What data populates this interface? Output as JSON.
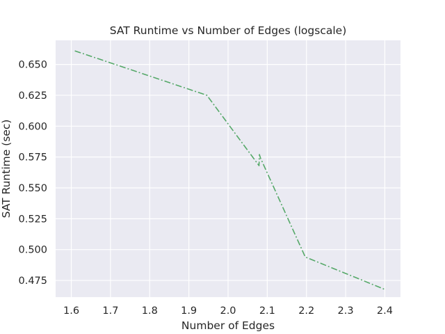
{
  "chart_data": {
    "type": "line",
    "title": "SAT Runtime vs Number of Edges (logscale)",
    "xlabel": "Number of Edges",
    "ylabel": "SAT Runtime (sec)",
    "xlim": [
      1.56,
      2.44
    ],
    "ylim": [
      0.4615,
      0.6695
    ],
    "x_ticks": [
      1.6,
      1.7,
      1.8,
      1.9,
      2.0,
      2.1,
      2.2,
      2.3,
      2.4
    ],
    "x_tick_labels": [
      "1.6",
      "1.7",
      "1.8",
      "1.9",
      "2.0",
      "2.1",
      "2.2",
      "2.3",
      "2.4"
    ],
    "y_ticks": [
      0.475,
      0.5,
      0.525,
      0.55,
      0.575,
      0.6,
      0.625,
      0.65
    ],
    "y_tick_labels": [
      "0.475",
      "0.500",
      "0.525",
      "0.550",
      "0.575",
      "0.600",
      "0.625",
      "0.650"
    ],
    "grid": true,
    "series": [
      {
        "color": "#55a868",
        "line_style": "dash-dot",
        "x": [
          1.609,
          1.946,
          2.079,
          2.08,
          2.083,
          2.197,
          2.398
        ],
        "y": [
          0.661,
          0.625,
          0.568,
          0.577,
          0.574,
          0.494,
          0.468
        ]
      }
    ]
  }
}
